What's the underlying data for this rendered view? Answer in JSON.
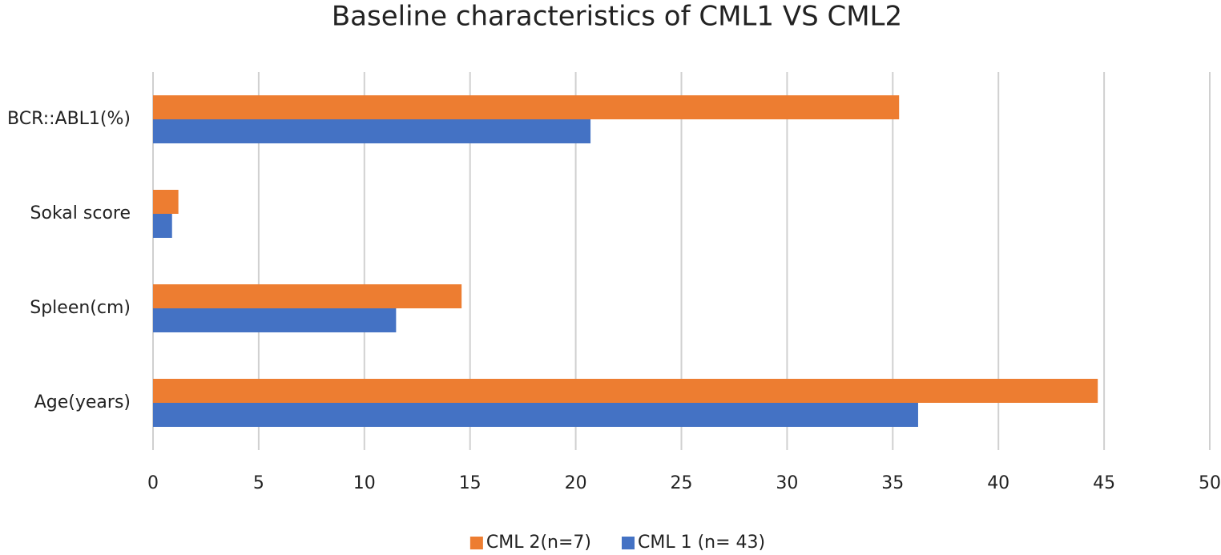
{
  "chart_data": {
    "type": "hbar",
    "title": "Baseline characteristics of CML1 VS CML2",
    "categories": [
      "Age(years)",
      "Spleen(cm)",
      "Sokal score",
      "BCR::ABL1(%)"
    ],
    "series": [
      {
        "name": "CML 2(n=7)",
        "color": "#ed7d31",
        "values": [
          44.7,
          14.6,
          1.2,
          35.3
        ]
      },
      {
        "name": "CML 1 (n= 43)",
        "color": "#4472c4",
        "values": [
          36.2,
          11.5,
          0.9,
          20.7
        ]
      }
    ],
    "xlim": [
      0,
      50
    ],
    "xticks": [
      0,
      5,
      10,
      15,
      20,
      25,
      30,
      35,
      40,
      45,
      50
    ],
    "grid": true,
    "legend": "bottom"
  }
}
